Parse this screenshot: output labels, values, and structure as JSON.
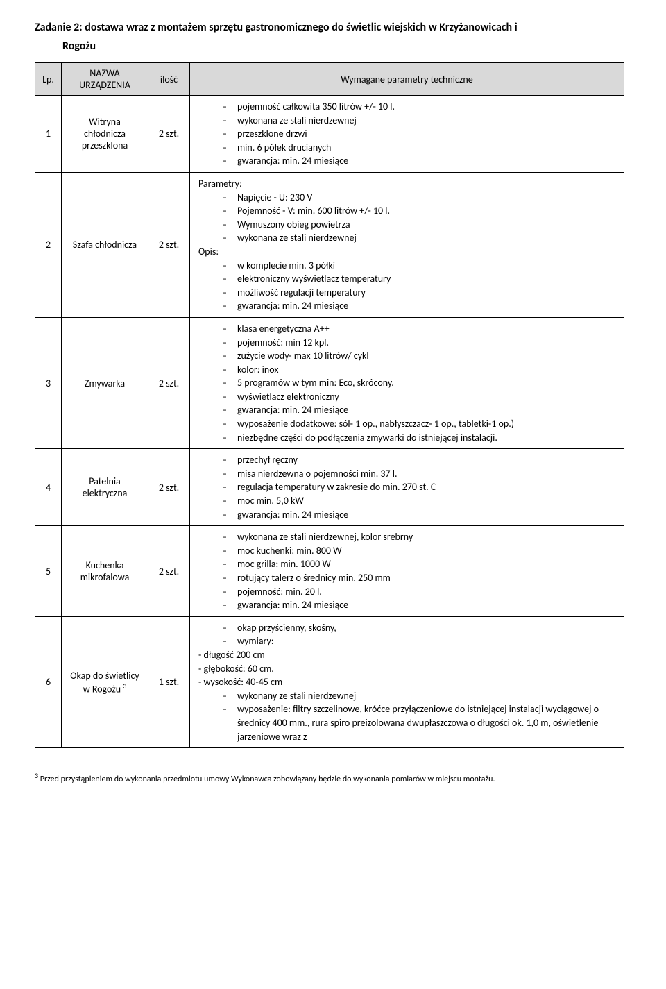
{
  "heading": {
    "line1": "Zadanie 2: dostawa wraz z montażem sprzętu gastronomicznego do świetlic wiejskich w Krzyżanowicach i",
    "line2": "Rogożu"
  },
  "table": {
    "headers": {
      "lp": "Lp.",
      "name": "NAZWA URZĄDZENIA",
      "qty": "ilość",
      "req": "Wymagane parametry techniczne"
    },
    "rows": [
      {
        "lp": "1",
        "name": "Witryna chłodnicza przeszklona",
        "qty": "2 szt.",
        "params": {
          "items": [
            "pojemność całkowita 350 litrów +/- 10 l.",
            "wykonana ze stali nierdzewnej",
            "przeszklone drzwi",
            "min. 6 półek drucianych",
            "gwarancja: min. 24 miesiące"
          ]
        }
      },
      {
        "lp": "2",
        "name": "Szafa chłodnicza",
        "qty": "2 szt.",
        "params": {
          "pre_label": "Parametry:",
          "pre_items": [
            "Napięcie - U: 230 V",
            "Pojemność - V: min. 600 litrów +/- 10 l.",
            "Wymuszony obieg powietrza",
            "wykonana ze stali nierdzewnej"
          ],
          "post_label": "Opis:",
          "items": [
            "w komplecie min. 3 półki",
            "elektroniczny wyświetlacz temperatury",
            "możliwość regulacji temperatury",
            "gwarancja: min. 24 miesiące"
          ]
        }
      },
      {
        "lp": "3",
        "name": "Zmywarka",
        "qty": "2 szt.",
        "params": {
          "items": [
            "klasa energetyczna A++",
            "pojemność: min 12 kpl.",
            "zużycie wody- max 10 litrów/ cykl",
            "kolor: inox",
            "5 programów w tym min: Eco, skrócony.",
            "wyświetlacz elektroniczny",
            "gwarancja: min. 24 miesiące",
            "wyposażenie dodatkowe: sól- 1 op., nabłyszczacz- 1 op., tabletki-1 op.)",
            "niezbędne części do podłączenia zmywarki do istniejącej instalacji."
          ]
        }
      },
      {
        "lp": "4",
        "name": "Patelnia elektryczna",
        "qty": "2 szt.",
        "params": {
          "items": [
            "przechył ręczny",
            "misa nierdzewna o pojemności min. 37 l.",
            "regulacja temperatury w zakresie do min. 270 st. C",
            "moc  min. 5,0 kW",
            "gwarancja: min. 24 miesiące"
          ]
        }
      },
      {
        "lp": "5",
        "name": "Kuchenka mikrofalowa",
        "qty": "2 szt.",
        "params": {
          "items": [
            "wykonana ze stali nierdzewnej, kolor srebrny",
            "moc kuchenki: min. 800 W",
            "moc grilla:  min. 1000 W",
            "rotujący talerz o średnicy min. 250 mm",
            "pojemność: min. 20 l.",
            "gwarancja: min. 24 miesiące"
          ]
        }
      },
      {
        "lp": "6",
        "name_html": "Okap  do świetlicy w Rogożu <sup class=\"fn\">3</sup>",
        "qty": "1 szt.",
        "params": {
          "lead_items": [
            "okap przyścienny, skośny,",
            "wymiary:"
          ],
          "plain_lines": [
            "- długość 200 cm",
            "- głębokość: 60 cm.",
            "- wysokość: 40-45 cm"
          ],
          "items": [
            "wykonany ze stali nierdzewnej",
            "wyposażenie: filtry szczelinowe, króćce przyłączeniowe do istniejącej instalacji wyciągowej o średnicy 400 mm., rura spiro preizolowana dwupłaszczowa o długości ok. 1,0 m, oświetlenie jarzeniowe wraz z"
          ]
        }
      }
    ]
  },
  "footnote": {
    "num": "3",
    "text": " Przed przystąpieniem do wykonania przedmiotu umowy Wykonawca zobowiązany będzie do wykonania pomiarów w miejscu montażu."
  }
}
